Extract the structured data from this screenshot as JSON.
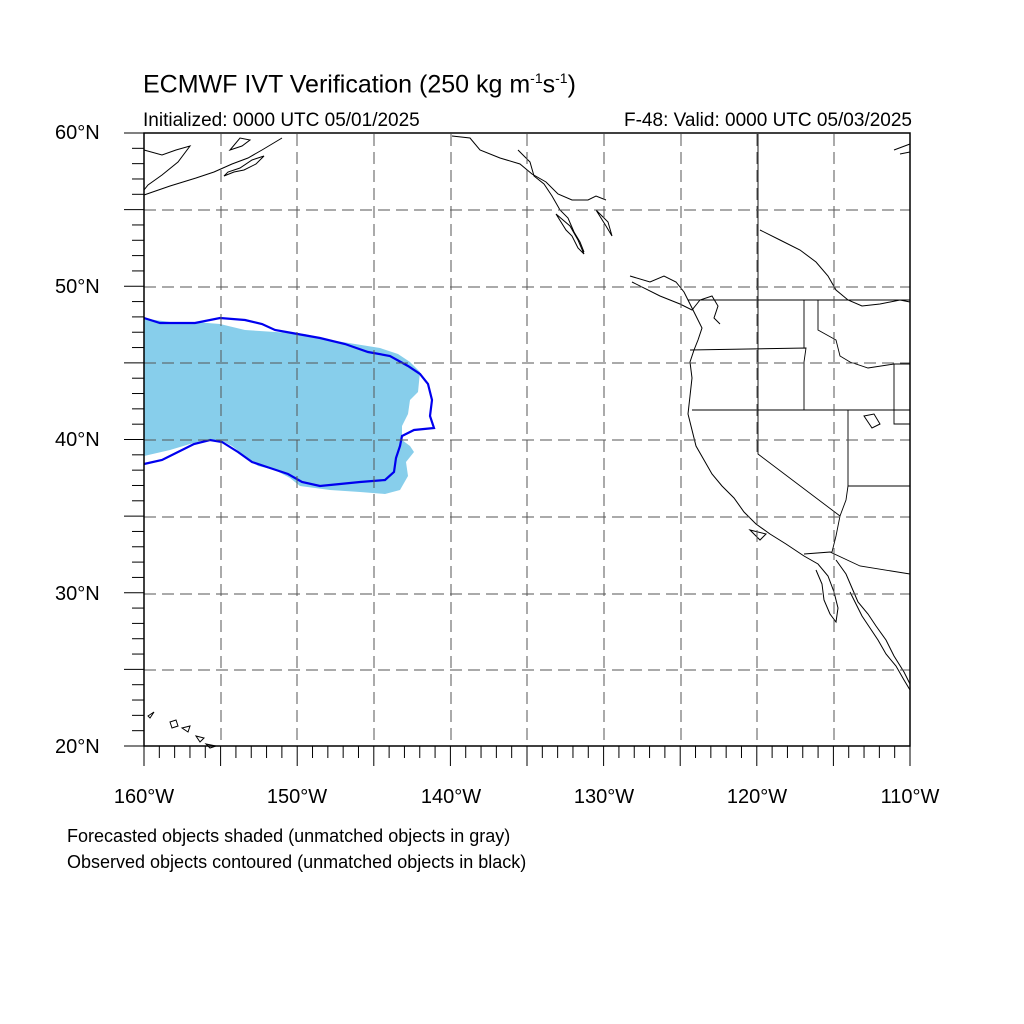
{
  "title": {
    "main": "ECMWF IVT Verification (250 kg m",
    "exp1": "-1",
    "mid": "s",
    "exp2": "-1",
    "close": ")"
  },
  "init_label": "Initialized: 0000 UTC 05/01/2025",
  "valid_label": "F-48: Valid: 0000 UTC 05/03/2025",
  "axes": {
    "lat_labels": [
      "60°N",
      "50°N",
      "40°N",
      "30°N",
      "20°N"
    ],
    "lon_labels": [
      "160°W",
      "150°W",
      "140°W",
      "130°W",
      "120°W",
      "110°W"
    ],
    "lat_range": [
      20,
      60
    ],
    "lon_range": [
      -160,
      -110
    ]
  },
  "legend_notes": [
    "Forecasted objects shaded (unmatched objects in gray)",
    "Observed objects contoured (unmatched objects in black)"
  ],
  "colors": {
    "forecast_fill": "#87ceeb",
    "observed_contour": "#0000ee",
    "coastline": "#000000",
    "grid": "#555555"
  }
}
